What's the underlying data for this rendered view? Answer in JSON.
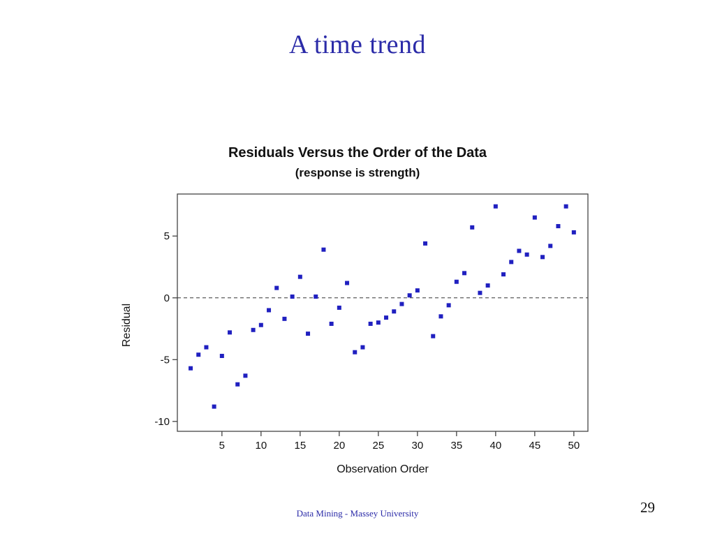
{
  "slide": {
    "title": "A time trend",
    "footer": "Data Mining - Massey University",
    "page_number": "29",
    "accent_color": "#2b2ba8"
  },
  "chart_data": {
    "type": "scatter",
    "title": "Residuals Versus the Order of the Data",
    "subtitle": "(response is strength)",
    "xlabel": "Observation Order",
    "ylabel": "Residual",
    "xlim": [
      -0.7,
      51.8
    ],
    "ylim": [
      -10.8,
      8.4
    ],
    "xticks": [
      5,
      10,
      15,
      20,
      25,
      30,
      35,
      40,
      45,
      50
    ],
    "yticks": [
      -10,
      -5,
      0,
      5
    ],
    "zero_line": {
      "y": 0,
      "style": "dashed"
    },
    "grid": false,
    "legend": "none",
    "point_color": "#2020c0",
    "marker": "square",
    "points": [
      [
        1,
        -5.7
      ],
      [
        2,
        -4.6
      ],
      [
        3,
        -4.0
      ],
      [
        4,
        -8.8
      ],
      [
        5,
        -4.7
      ],
      [
        6,
        -2.8
      ],
      [
        7,
        -7.0
      ],
      [
        8,
        -6.3
      ],
      [
        9,
        -2.6
      ],
      [
        10,
        -2.2
      ],
      [
        11,
        -1.0
      ],
      [
        12,
        0.8
      ],
      [
        13,
        -1.7
      ],
      [
        14,
        0.1
      ],
      [
        15,
        1.7
      ],
      [
        16,
        -2.9
      ],
      [
        17,
        0.1
      ],
      [
        18,
        3.9
      ],
      [
        19,
        -2.1
      ],
      [
        20,
        -0.8
      ],
      [
        21,
        1.2
      ],
      [
        22,
        -4.4
      ],
      [
        23,
        -4.0
      ],
      [
        24,
        -2.1
      ],
      [
        25,
        -2.0
      ],
      [
        26,
        -1.6
      ],
      [
        27,
        -1.1
      ],
      [
        28,
        -0.5
      ],
      [
        29,
        0.2
      ],
      [
        30,
        0.6
      ],
      [
        31,
        4.4
      ],
      [
        32,
        -3.1
      ],
      [
        33,
        -1.5
      ],
      [
        34,
        -0.6
      ],
      [
        35,
        1.3
      ],
      [
        36,
        2.0
      ],
      [
        37,
        5.7
      ],
      [
        38,
        0.4
      ],
      [
        39,
        1.0
      ],
      [
        40,
        7.4
      ],
      [
        41,
        1.9
      ],
      [
        42,
        2.9
      ],
      [
        43,
        3.8
      ],
      [
        44,
        3.5
      ],
      [
        45,
        6.5
      ],
      [
        46,
        3.3
      ],
      [
        47,
        4.2
      ],
      [
        48,
        5.8
      ],
      [
        49,
        7.4
      ],
      [
        50,
        5.3
      ]
    ]
  }
}
